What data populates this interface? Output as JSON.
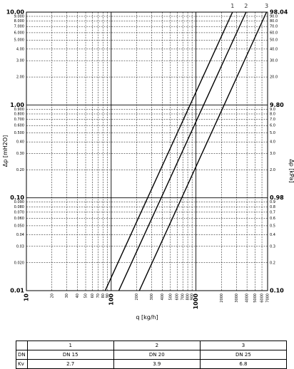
{
  "chart_data": {
    "type": "line",
    "x_scale": "log",
    "y_scale": "log",
    "grid": true,
    "xlabel": "q [kg/h]",
    "ylabel_left": "Δp [mH2O]",
    "ylabel_right": "Δp [kPa]",
    "xlim": [
      10,
      7000
    ],
    "ylim": [
      0.01,
      10
    ],
    "x_ticks": [
      "10",
      "20",
      "30",
      "40",
      "50",
      "60",
      "70",
      "80",
      "90",
      "100",
      "200",
      "300",
      "400",
      "500",
      "600",
      "700",
      "800",
      "900",
      "1000",
      "2000",
      "3000",
      "4000",
      "5000",
      "6000",
      "7000"
    ],
    "y_ticks_left": [
      "0.01",
      "0.020",
      "0.03",
      "0.04",
      "0.050",
      "0.060",
      "0.070",
      "0.080",
      "0.090",
      "0.10",
      "0.20",
      "0.30",
      "0.40",
      "0.500",
      "0.600",
      "0.700",
      "0.800",
      "0.900",
      "1.00",
      "2.00",
      "3.00",
      "4.00",
      "5.000",
      "6.000",
      "7.000",
      "8.000",
      "9.000",
      "10.00"
    ],
    "y_ticks_right": [
      "0.10",
      "0.2",
      "0.3",
      "0.4",
      "0.5",
      "0.6",
      "0.7",
      "0.8",
      "0.9",
      "0.98",
      "2.0",
      "3.0",
      "4.0",
      "5.0",
      "6.0",
      "7.0",
      "8.0",
      "9.0",
      "9.80",
      "20.0",
      "30.0",
      "40.0",
      "50.0",
      "60.0",
      "70.0",
      "80.0",
      "90.0",
      "98.04"
    ],
    "series": [
      {
        "name": "1",
        "kv": 2.7,
        "points": [
          [
            85,
            0.01
          ],
          [
            2700,
            10
          ]
        ]
      },
      {
        "name": "2",
        "kv": 3.9,
        "points": [
          [
            123,
            0.01
          ],
          [
            3900,
            10
          ]
        ]
      },
      {
        "name": "3",
        "kv": 6.8,
        "points": [
          [
            215,
            0.01
          ],
          [
            6800,
            10
          ]
        ]
      }
    ]
  },
  "table": {
    "header": [
      "1",
      "2",
      "3"
    ],
    "rows": [
      {
        "label": "DN",
        "values": [
          "DN 15",
          "DN 20",
          "DN 25"
        ]
      },
      {
        "label": "Kv",
        "values": [
          "2.7",
          "3.9",
          "6.8"
        ]
      }
    ]
  }
}
